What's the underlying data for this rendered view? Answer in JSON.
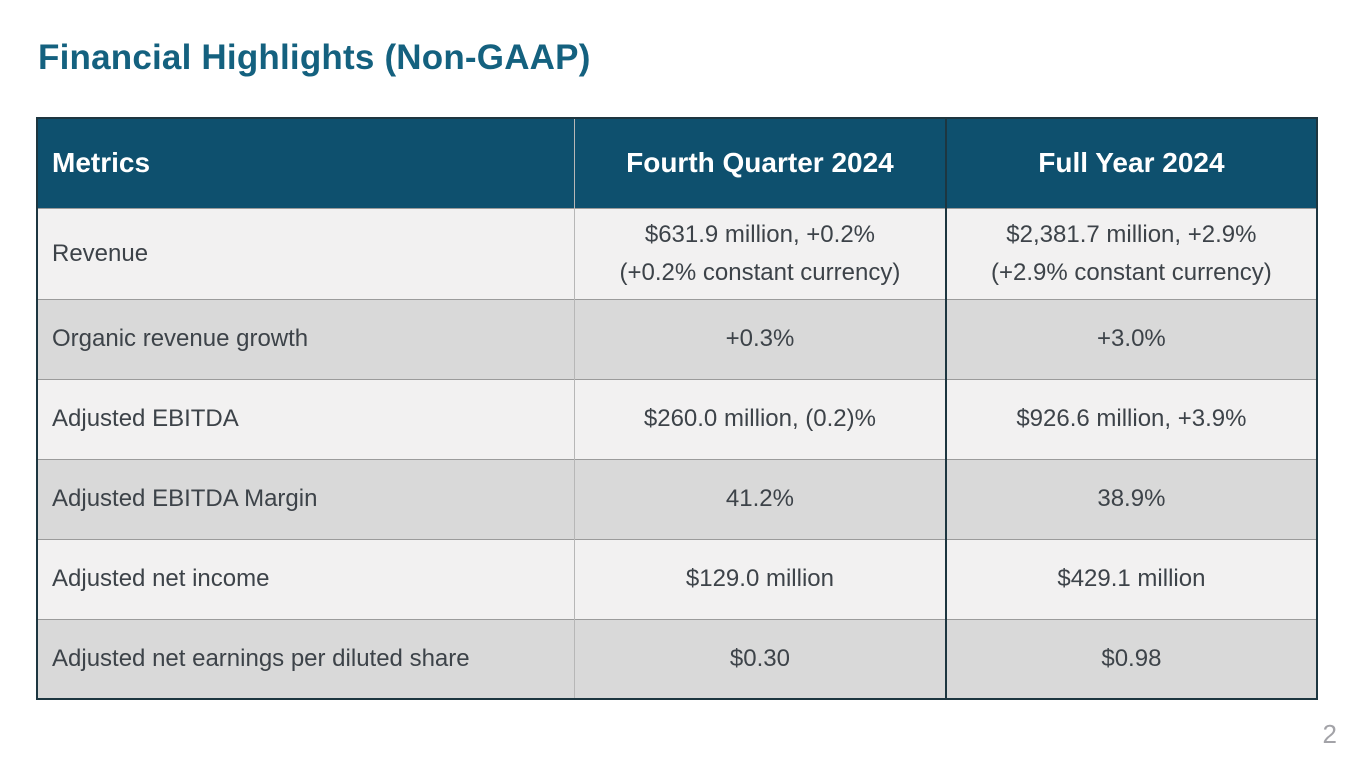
{
  "title": "Financial Highlights (Non-GAAP)",
  "page": {
    "number": "2"
  },
  "colors": {
    "title_text": "#14617f",
    "header_bg": "#0e506e",
    "header_text": "#ffffff",
    "row_light": "#f2f1f1",
    "row_dark": "#d9d9d9",
    "cell_text": "#3d4349",
    "outer_border": "#1d3640",
    "inner_border_light": "#b7b7b7",
    "page_number_text": "#a3a3a8"
  },
  "table": {
    "headers": [
      "Metrics",
      "Fourth Quarter 2024",
      "Full Year 2024"
    ],
    "rows": [
      {
        "metric": "Revenue",
        "q4": "$631.9 million, +0.2%",
        "q4_line2": "(+0.2% constant currency)",
        "fy": "$2,381.7 million, +2.9%",
        "fy_line2": "(+2.9% constant currency)"
      },
      {
        "metric": "Organic revenue growth",
        "q4": "+0.3%",
        "fy": "+3.0%"
      },
      {
        "metric": "Adjusted EBITDA",
        "q4": "$260.0 million, (0.2)%",
        "fy": "$926.6 million, +3.9%"
      },
      {
        "metric": "Adjusted EBITDA Margin",
        "q4": "41.2%",
        "fy": "38.9%"
      },
      {
        "metric": "Adjusted net income",
        "q4": "$129.0 million",
        "fy": "$429.1 million"
      },
      {
        "metric": "Adjusted net earnings per diluted share",
        "q4": "$0.30",
        "fy": "$0.98"
      }
    ]
  }
}
